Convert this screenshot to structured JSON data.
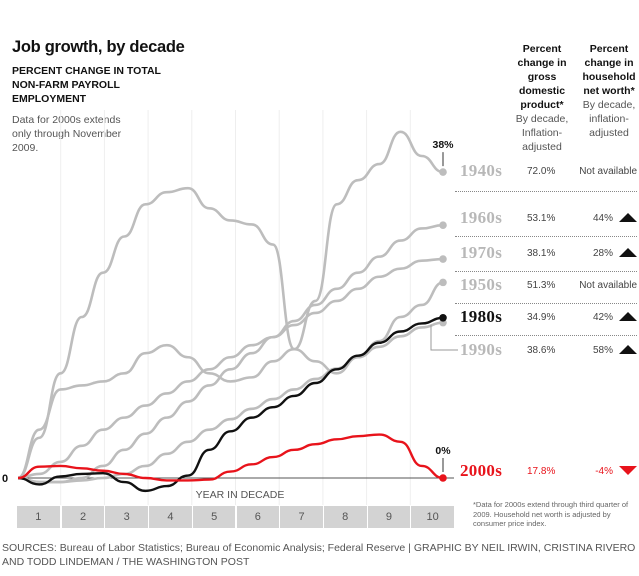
{
  "header": {
    "title": "Job growth, by decade",
    "subtitle": "PERCENT CHANGE IN TOTAL NON-FARM PAYROLL EMPLOYMENT",
    "note": "Data for 2000s extends only through November 2009."
  },
  "columns": {
    "gdp": {
      "title": "Percent change in gross domestic product*",
      "sub": "By decade, Inflation-adjusted"
    },
    "net_worth": {
      "title": "Percent change in household net worth*",
      "sub": "By decade, inflation-adjusted"
    }
  },
  "rows": [
    {
      "decade": "1940s",
      "gdp": "72.0%",
      "net_worth": "Not available",
      "trend": "none",
      "color": "#b8b8b8"
    },
    {
      "decade": "1960s",
      "gdp": "53.1%",
      "net_worth": "44%",
      "trend": "up",
      "color": "#b8b8b8"
    },
    {
      "decade": "1970s",
      "gdp": "38.1%",
      "net_worth": "28%",
      "trend": "up",
      "color": "#b8b8b8"
    },
    {
      "decade": "1950s",
      "gdp": "51.3%",
      "net_worth": "Not available",
      "trend": "none",
      "color": "#b8b8b8"
    },
    {
      "decade": "1980s",
      "gdp": "34.9%",
      "net_worth": "42%",
      "trend": "up",
      "color": "#111111"
    },
    {
      "decade": "1990s",
      "gdp": "38.6%",
      "net_worth": "58%",
      "trend": "up",
      "color": "#b8b8b8"
    },
    {
      "decade": "2000s",
      "gdp": "17.8%",
      "net_worth": "-4%",
      "trend": "down",
      "color": "#e8131b"
    }
  ],
  "footnote": "*Data for 2000s extend through third quarter of 2009. Household net worth is adjusted by consumer price index.",
  "sources": "SOURCES: Bureau of Labor Statistics; Bureau of Economic Analysis; Federal Reserve | GRAPHIC BY NEIL IRWIN, CRISTINA RIVERO AND TODD LINDEMAN / THE WASHINGTON POST",
  "chart_data": {
    "type": "line",
    "title": "Job growth, by decade",
    "subtitle": "Percent change in total non-farm payroll employment",
    "xlabel": "YEAR IN DECADE",
    "ylabel": "",
    "x_ticks": [
      "1",
      "2",
      "3",
      "4",
      "5",
      "6",
      "7",
      "8",
      "9",
      "10"
    ],
    "xlim": [
      0,
      10
    ],
    "ylim": [
      -3,
      45
    ],
    "zero_label": "0",
    "grid": "vertical",
    "annotations": [
      {
        "series": "1940s",
        "text": "38%"
      },
      {
        "series": "2000s",
        "text": "0%"
      }
    ],
    "x": [
      0,
      0.5,
      1,
      1.5,
      2,
      2.5,
      3,
      3.5,
      4,
      4.5,
      5,
      5.5,
      6,
      6.5,
      7,
      7.5,
      8,
      8.5,
      9,
      9.5,
      10
    ],
    "series": [
      {
        "name": "1940s",
        "color": "#bdbdbd",
        "values": [
          0,
          5,
          13,
          20,
          25.5,
          30,
          34,
          35.5,
          36,
          33.5,
          32,
          31.5,
          29,
          16,
          22,
          34,
          37,
          39,
          43,
          40,
          38
        ]
      },
      {
        "name": "1960s",
        "color": "#bdbdbd",
        "values": [
          0,
          -0.5,
          -0.5,
          0,
          1.5,
          3.5,
          5.5,
          7.5,
          9.5,
          11.5,
          13.5,
          15.5,
          17.5,
          19.5,
          21.5,
          23.5,
          25.5,
          27.5,
          29.5,
          31,
          31.4
        ]
      },
      {
        "name": "1970s",
        "color": "#bdbdbd",
        "values": [
          0,
          0.5,
          2,
          4,
          6,
          7.5,
          9,
          10.5,
          12,
          13.5,
          15,
          16.5,
          17.5,
          19,
          20.5,
          22,
          23.5,
          25,
          26,
          27,
          27.2
        ]
      },
      {
        "name": "1950s",
        "color": "#bdbdbd",
        "values": [
          0,
          6,
          11,
          11.5,
          12,
          13,
          15.5,
          16.5,
          15,
          13,
          12,
          12.5,
          14.5,
          16,
          14.5,
          13,
          15,
          17,
          20,
          21.5,
          24.3
        ]
      },
      {
        "name": "1980s",
        "color": "#111111",
        "values": [
          0,
          -0.8,
          0.2,
          0.5,
          0.6,
          -0.5,
          -1.6,
          -1,
          0.3,
          3.5,
          5.8,
          7.5,
          8.8,
          10.2,
          11.8,
          13.5,
          15.2,
          16.8,
          18.2,
          19.2,
          19.9
        ]
      },
      {
        "name": "1990s",
        "color": "#bdbdbd",
        "values": [
          0,
          -0.5,
          -0.5,
          -0.3,
          0,
          0.5,
          1.5,
          3,
          4.5,
          6,
          7.3,
          8.6,
          9.8,
          11,
          12.3,
          13.6,
          15,
          16.3,
          17.6,
          18.7,
          19.3
        ]
      },
      {
        "name": "2000s",
        "color": "#e8131b",
        "values": [
          0,
          1.4,
          1.5,
          1.2,
          0.9,
          0.5,
          0,
          -0.3,
          -0.3,
          -0.2,
          0.8,
          1.7,
          2.6,
          3.5,
          4.2,
          4.8,
          5.2,
          5.4,
          4.5,
          1.5,
          0
        ]
      }
    ]
  },
  "x_bands": [
    "1",
    "2",
    "3",
    "4",
    "5",
    "6",
    "7",
    "8",
    "9",
    "10"
  ]
}
